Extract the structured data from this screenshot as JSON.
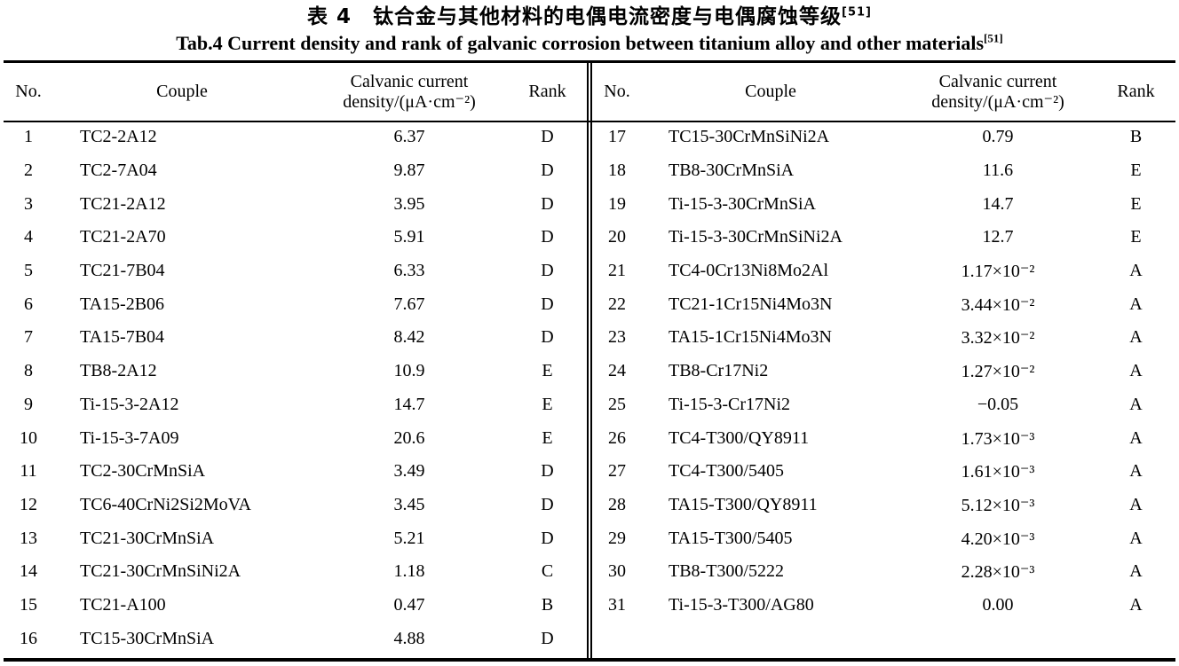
{
  "page": {
    "title_cn": "表 4　钛合金与其他材料的电偶电流密度与电偶腐蚀等级",
    "title_cn_sup": "[51]",
    "title_en": "Tab.4 Current density and rank of galvanic corrosion between titanium alloy and other materials",
    "title_en_sup": "[51]"
  },
  "columns": {
    "no": "No.",
    "couple": "Couple",
    "density_line1": "Calvanic current",
    "density_line2": "density/(μA·cm⁻²)",
    "rank": "Rank"
  },
  "left_rows": [
    {
      "no": "1",
      "couple": "TC2-2A12",
      "density": "6.37",
      "rank": "D"
    },
    {
      "no": "2",
      "couple": "TC2-7A04",
      "density": "9.87",
      "rank": "D"
    },
    {
      "no": "3",
      "couple": "TC21-2A12",
      "density": "3.95",
      "rank": "D"
    },
    {
      "no": "4",
      "couple": "TC21-2A70",
      "density": "5.91",
      "rank": "D"
    },
    {
      "no": "5",
      "couple": "TC21-7B04",
      "density": "6.33",
      "rank": "D"
    },
    {
      "no": "6",
      "couple": "TA15-2B06",
      "density": "7.67",
      "rank": "D"
    },
    {
      "no": "7",
      "couple": "TA15-7B04",
      "density": "8.42",
      "rank": "D"
    },
    {
      "no": "8",
      "couple": "TB8-2A12",
      "density": "10.9",
      "rank": "E"
    },
    {
      "no": "9",
      "couple": "Ti-15-3-2A12",
      "density": "14.7",
      "rank": "E"
    },
    {
      "no": "10",
      "couple": "Ti-15-3-7A09",
      "density": "20.6",
      "rank": "E"
    },
    {
      "no": "11",
      "couple": "TC2-30CrMnSiA",
      "density": "3.49",
      "rank": "D"
    },
    {
      "no": "12",
      "couple": "TC6-40CrNi2Si2MoVA",
      "density": "3.45",
      "rank": "D"
    },
    {
      "no": "13",
      "couple": "TC21-30CrMnSiA",
      "density": "5.21",
      "rank": "D"
    },
    {
      "no": "14",
      "couple": "TC21-30CrMnSiNi2A",
      "density": "1.18",
      "rank": "C"
    },
    {
      "no": "15",
      "couple": "TC21-A100",
      "density": "0.47",
      "rank": "B"
    },
    {
      "no": "16",
      "couple": "TC15-30CrMnSiA",
      "density": "4.88",
      "rank": "D"
    }
  ],
  "right_rows": [
    {
      "no": "17",
      "couple": "TC15-30CrMnSiNi2A",
      "density": "0.79",
      "rank": "B"
    },
    {
      "no": "18",
      "couple": "TB8-30CrMnSiA",
      "density": "11.6",
      "rank": "E"
    },
    {
      "no": "19",
      "couple": "Ti-15-3-30CrMnSiA",
      "density": "14.7",
      "rank": "E"
    },
    {
      "no": "20",
      "couple": "Ti-15-3-30CrMnSiNi2A",
      "density": "12.7",
      "rank": "E"
    },
    {
      "no": "21",
      "couple": "TC4-0Cr13Ni8Mo2Al",
      "density": "1.17×10⁻²",
      "rank": "A"
    },
    {
      "no": "22",
      "couple": "TC21-1Cr15Ni4Mo3N",
      "density": "3.44×10⁻²",
      "rank": "A"
    },
    {
      "no": "23",
      "couple": "TA15-1Cr15Ni4Mo3N",
      "density": "3.32×10⁻²",
      "rank": "A"
    },
    {
      "no": "24",
      "couple": "TB8-Cr17Ni2",
      "density": "1.27×10⁻²",
      "rank": "A"
    },
    {
      "no": "25",
      "couple": "Ti-15-3-Cr17Ni2",
      "density": "−0.05",
      "rank": "A"
    },
    {
      "no": "26",
      "couple": "TC4-T300/QY8911",
      "density": "1.73×10⁻³",
      "rank": "A"
    },
    {
      "no": "27",
      "couple": "TC4-T300/5405",
      "density": "1.61×10⁻³",
      "rank": "A"
    },
    {
      "no": "28",
      "couple": "TA15-T300/QY8911",
      "density": "5.12×10⁻³",
      "rank": "A"
    },
    {
      "no": "29",
      "couple": "TA15-T300/5405",
      "density": "4.20×10⁻³",
      "rank": "A"
    },
    {
      "no": "30",
      "couple": "TB8-T300/5222",
      "density": "2.28×10⁻³",
      "rank": "A"
    },
    {
      "no": "31",
      "couple": "Ti-15-3-T300/AG80",
      "density": "0.00",
      "rank": "A"
    }
  ]
}
